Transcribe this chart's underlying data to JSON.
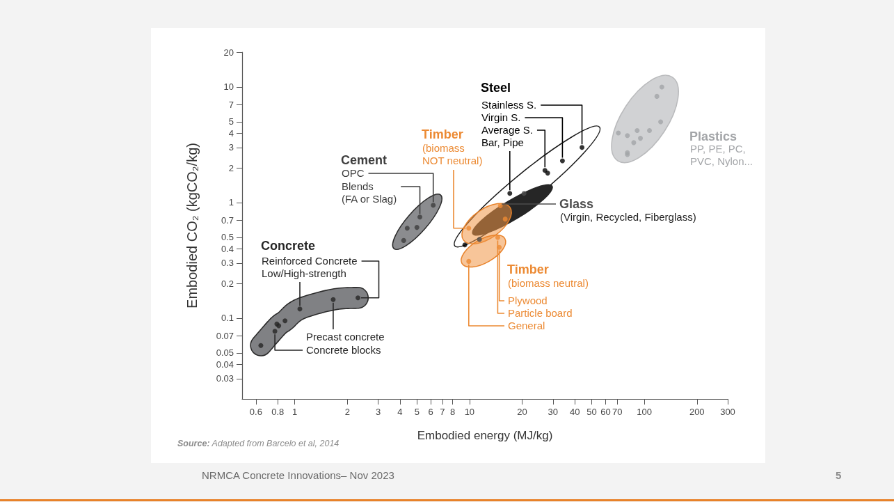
{
  "chart_data": {
    "type": "scatter",
    "xlabel": "Embodied energy (MJ/kg)",
    "ylabel": "Embodied CO₂ (kgCO₂/kg)",
    "log": "xy",
    "marker": "circle",
    "xlim": [
      0.5,
      300
    ],
    "ylim": [
      0.02,
      20
    ],
    "xticks": [
      0.6,
      0.8,
      1,
      2,
      3,
      4,
      5,
      6,
      7,
      8,
      10,
      20,
      30,
      40,
      50,
      60,
      70,
      100,
      200,
      300
    ],
    "yticks": [
      0.03,
      0.04,
      0.05,
      0.07,
      0.1,
      0.2,
      0.3,
      0.4,
      0.5,
      0.7,
      1,
      2,
      3,
      4,
      5,
      7,
      10,
      20
    ],
    "series": [
      {
        "name": "Concrete",
        "color": "#262626",
        "x": [
          0.64,
          0.77,
          0.79,
          0.81,
          0.88,
          1.07,
          1.66,
          2.3
        ],
        "values": [
          0.058,
          0.077,
          0.089,
          0.086,
          0.095,
          0.12,
          0.145,
          0.15
        ]
      },
      {
        "name": "Cement",
        "color": "#3d3d3d",
        "x": [
          4.2,
          4.4,
          5,
          5.2,
          6.2
        ],
        "values": [
          0.47,
          0.6,
          0.61,
          0.75,
          0.95
        ]
      },
      {
        "name": "Steel",
        "color": "#000000",
        "x": [
          9.4,
          17,
          27,
          28,
          34,
          44
        ],
        "values": [
          0.43,
          1.2,
          1.9,
          1.8,
          2.3,
          3.0
        ]
      },
      {
        "name": "Glass",
        "color": "#4d4d4d",
        "x": [
          11.4,
          20.5
        ],
        "values": [
          0.48,
          1.2
        ]
      },
      {
        "name": "Timber",
        "color": "#ec8a33",
        "x": [
          9.9,
          15,
          16
        ],
        "values": [
          0.6,
          0.94,
          0.72
        ]
      },
      {
        "name": "Timber",
        "color": "#ec8a33",
        "x": [
          9.9,
          14.5,
          14.8
        ],
        "values": [
          0.31,
          0.5,
          0.41
        ]
      },
      {
        "name": "Plastics",
        "color": "#a3a5a8",
        "x": [
          71,
          80,
          80,
          80,
          87,
          91,
          95,
          107,
          118,
          124,
          126
        ],
        "values": [
          4,
          3.8,
          2.7,
          2.6,
          3.3,
          4.2,
          3.6,
          4.2,
          8.3,
          5,
          10
        ]
      }
    ],
    "annotations": [
      {
        "text": "Reinforced Concrete",
        "x": 2.3,
        "y": 0.15
      },
      {
        "text": "Low/High-strength",
        "x": 1.07,
        "y": 0.12
      },
      {
        "text": "Precast concrete",
        "x": 1.66,
        "y": 0.145
      },
      {
        "text": "Concrete blocks",
        "x": 0.77,
        "y": 0.077
      },
      {
        "text": "OPC",
        "x": 6.2,
        "y": 0.95
      },
      {
        "text": "Blends (FA or Slag)",
        "x": 5.2,
        "y": 0.75
      },
      {
        "text": "Stainless S.",
        "x": 44,
        "y": 3.0
      },
      {
        "text": "Virgin S.",
        "x": 34,
        "y": 2.3
      },
      {
        "text": "Average S.",
        "x": 27,
        "y": 1.9
      },
      {
        "text": "Bar, Pipe",
        "x": 17,
        "y": 1.2
      },
      {
        "text": "(biomass NOT neutral)",
        "x": 9.9,
        "y": 0.6
      },
      "(Virgin, Recycled, Fiberglass)",
      "(biomass neutral)",
      {
        "text": "Plywood",
        "x": 14.8,
        "y": 0.41
      },
      {
        "text": "Particle board",
        "x": 14.5,
        "y": 0.5
      },
      {
        "text": "General",
        "x": 9.9,
        "y": 0.31
      },
      "PP, PE, PC, PVC, Nylon...",
      "Source: Adapted from Barcelo et al, 2014",
      "NRMCA Concrete Innovations– Nov 2023",
      "5"
    ]
  }
}
